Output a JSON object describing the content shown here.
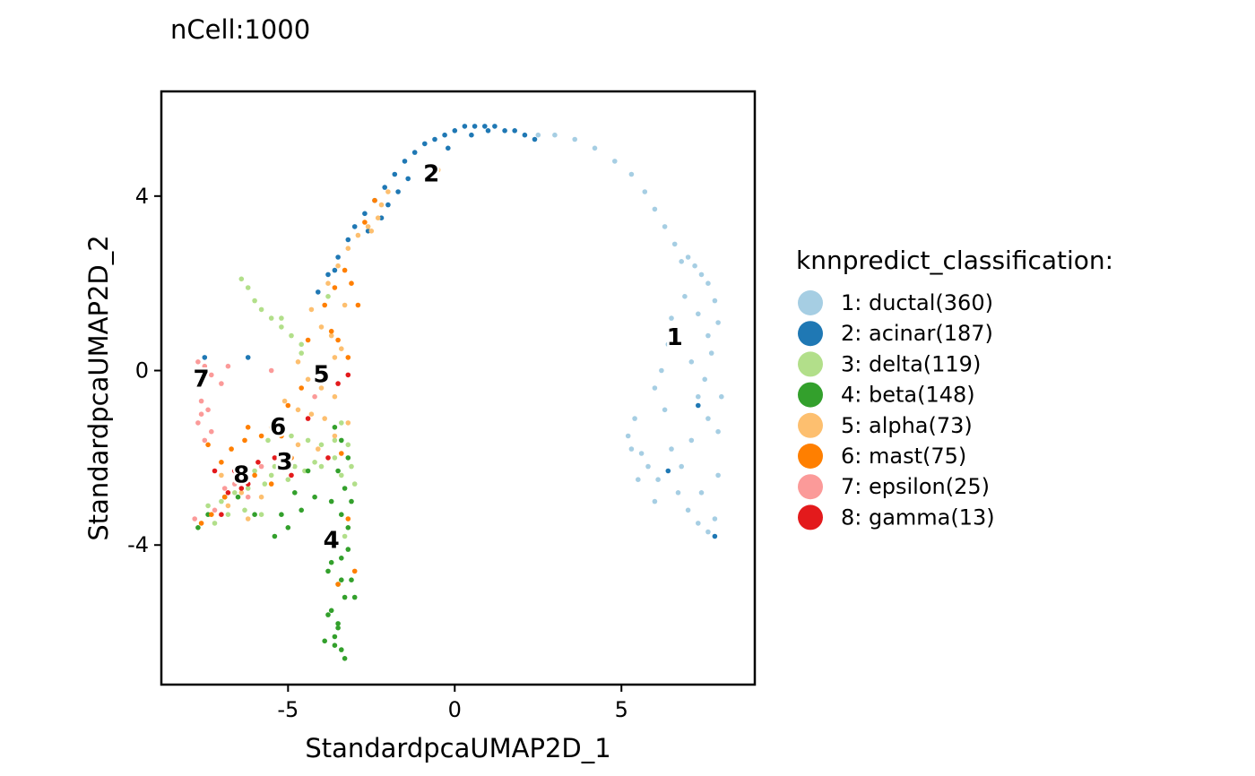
{
  "chart_data": {
    "type": "scatter",
    "title": "nCell:1000",
    "xlabel": "StandardpcaUMAP2D_1",
    "ylabel": "StandardpcaUMAP2D_2",
    "xlim": [
      -8.8,
      9.0
    ],
    "ylim": [
      -7.2,
      6.4
    ],
    "x_ticks": [
      -5,
      0,
      5
    ],
    "y_ticks": [
      -4,
      0,
      4
    ],
    "x_tick_labels": [
      "-5",
      "0",
      "5"
    ],
    "y_tick_labels": [
      "-4",
      "0",
      "4"
    ],
    "grid": false,
    "legend": {
      "title": "knnpredict_classification:",
      "position": "right"
    },
    "series": [
      {
        "id": "1",
        "name": "1: ductal(360)",
        "count": 360,
        "color": "#a6cee3",
        "label_pos": [
          6.6,
          0.75
        ],
        "x": [
          2.5,
          3.0,
          3.6,
          4.2,
          4.8,
          5.3,
          5.7,
          6.0,
          6.3,
          6.6,
          6.8,
          7.0,
          7.2,
          7.4,
          7.6,
          7.8,
          7.9,
          6.9,
          7.3,
          7.7,
          6.5,
          6.4,
          7.1,
          7.5,
          8.0,
          6.2,
          6.0,
          6.3,
          7.6,
          7.9,
          5.4,
          5.2,
          5.6,
          5.8,
          6.1,
          6.7,
          7.0,
          7.3,
          7.6,
          7.8,
          7.4,
          6.8,
          7.9,
          6.5,
          5.5,
          5.3,
          6.0,
          7.1,
          7.6,
          7.3
        ],
        "y": [
          5.4,
          5.4,
          5.3,
          5.1,
          4.8,
          4.5,
          4.1,
          3.7,
          3.3,
          2.9,
          2.5,
          2.6,
          2.4,
          2.2,
          2.0,
          1.6,
          1.1,
          1.7,
          1.3,
          0.4,
          1.2,
          0.6,
          0.2,
          -0.2,
          -0.6,
          0.0,
          -0.4,
          -0.9,
          -1.1,
          -1.4,
          -1.1,
          -1.5,
          -1.9,
          -2.2,
          -2.5,
          -2.8,
          -3.2,
          -3.5,
          -3.7,
          -3.4,
          -2.8,
          -2.2,
          -2.4,
          -1.8,
          -2.5,
          -1.8,
          -3.0,
          -1.6,
          0.8,
          -0.6
        ]
      },
      {
        "id": "2",
        "name": "2: acinar(187)",
        "count": 187,
        "color": "#1f78b4",
        "label_pos": [
          -0.7,
          4.5
        ],
        "x": [
          -4.1,
          -3.8,
          -3.5,
          -3.2,
          -3.0,
          -2.7,
          -2.4,
          -2.1,
          -1.8,
          -1.5,
          -1.2,
          -0.9,
          -0.6,
          -0.3,
          0.0,
          0.3,
          0.6,
          0.9,
          1.2,
          1.5,
          1.8,
          2.1,
          2.4,
          -2.6,
          -2.2,
          -1.7,
          -1.4,
          -2.0,
          -0.2,
          0.5,
          1.0,
          6.5,
          7.3,
          6.4,
          7.8,
          -7.5,
          -6.2,
          -3.6
        ],
        "y": [
          1.8,
          2.2,
          2.6,
          3.0,
          3.3,
          3.6,
          3.9,
          4.2,
          4.5,
          4.8,
          5.0,
          5.2,
          5.3,
          5.4,
          5.5,
          5.6,
          5.6,
          5.6,
          5.6,
          5.5,
          5.5,
          5.4,
          5.3,
          3.2,
          3.5,
          4.1,
          4.4,
          3.8,
          5.1,
          5.4,
          5.5,
          0.9,
          -0.8,
          -2.3,
          -3.8,
          0.3,
          0.3,
          2.3
        ]
      },
      {
        "id": "3",
        "name": "3: delta(119)",
        "count": 119,
        "color": "#b2df8a",
        "label_pos": [
          -5.1,
          -2.1
        ],
        "x": [
          -6.4,
          -6.2,
          -6.0,
          -5.8,
          -5.5,
          -5.2,
          -4.9,
          -4.6,
          -5.6,
          -4.9,
          -4.4,
          -4.0,
          -3.6,
          -3.2,
          -5.4,
          -4.8,
          -4.2,
          -3.6,
          -3.1,
          -6.0,
          -5.5,
          -5.0,
          -4.5,
          -4.0,
          -3.4,
          -7.4,
          -7.0,
          -6.6,
          -6.2,
          -5.7,
          -7.2,
          -6.8,
          -6.3,
          -5.8,
          -3.3,
          -3.0,
          -3.4,
          -5.2,
          -4.6,
          -3.8
        ],
        "y": [
          2.1,
          1.9,
          1.6,
          1.4,
          1.2,
          1.0,
          0.8,
          0.6,
          -1.6,
          -1.5,
          -1.6,
          -1.7,
          -1.6,
          -1.7,
          -2.2,
          -2.2,
          -2.1,
          -2.0,
          -2.2,
          -2.3,
          -2.4,
          -2.5,
          -2.3,
          -2.2,
          -2.4,
          -3.1,
          -3.0,
          -2.8,
          -2.7,
          -2.6,
          -3.5,
          -3.3,
          -3.2,
          -3.3,
          -3.8,
          -2.6,
          -1.2,
          1.2,
          0.4,
          1.7
        ]
      },
      {
        "id": "4",
        "name": "4: beta(148)",
        "count": 148,
        "color": "#33a02c",
        "label_pos": [
          -3.7,
          -3.9
        ],
        "x": [
          -3.6,
          -3.4,
          -3.2,
          -3.5,
          -3.3,
          -3.7,
          -3.4,
          -3.2,
          -3.6,
          -3.4,
          -3.8,
          -3.5,
          -3.3,
          -3.7,
          -3.5,
          -3.6,
          -3.4,
          -3.3,
          -3.8,
          -3.6,
          -3.5,
          -3.7,
          -3.4,
          -3.2,
          -4.2,
          -4.6,
          -5.0,
          -5.4,
          -5.2,
          -4.8,
          -4.4,
          -6.9,
          -7.4,
          -7.7,
          -6.0,
          -6.5,
          -3.1,
          -3.0,
          -3.9,
          -3.1
        ],
        "y": [
          -1.3,
          -1.6,
          -2.0,
          -2.3,
          -2.7,
          -3.0,
          -3.3,
          -3.6,
          -4.0,
          -4.3,
          -4.6,
          -4.9,
          -5.2,
          -5.5,
          -5.8,
          -6.1,
          -6.4,
          -6.6,
          -5.6,
          -6.3,
          -5.9,
          -4.4,
          -4.8,
          -4.1,
          -2.9,
          -3.2,
          -3.6,
          -3.8,
          -3.3,
          -2.8,
          -2.3,
          -2.9,
          -3.3,
          -3.6,
          -3.3,
          -2.9,
          -4.8,
          -5.2,
          -6.2,
          -3.0
        ]
      },
      {
        "id": "5",
        "name": "5: alpha(73)",
        "count": 73,
        "color": "#fdbf6f",
        "label_pos": [
          -4.0,
          -0.1
        ],
        "x": [
          -3.8,
          -3.5,
          -3.2,
          -2.9,
          -2.6,
          -2.3,
          -4.3,
          -4.0,
          -3.7,
          -3.4,
          -4.7,
          -4.4,
          -4.0,
          -3.6,
          -5.1,
          -4.7,
          -4.3,
          -3.9,
          -5.5,
          -5.2,
          -4.7,
          -4.1,
          -3.6,
          -3.2,
          -6.4,
          -6.8,
          -7.0,
          -6.2,
          -5.8,
          -3.3,
          -2.2,
          -2.0,
          -2.5,
          -3.6,
          -0.5
        ],
        "y": [
          2.0,
          2.4,
          2.8,
          3.1,
          3.3,
          3.5,
          1.4,
          1.0,
          0.8,
          0.5,
          0.2,
          -0.2,
          -0.4,
          -0.6,
          -0.7,
          -0.9,
          -1.0,
          -1.1,
          -1.3,
          -1.5,
          -1.7,
          -1.8,
          -1.5,
          -1.2,
          -2.8,
          -3.1,
          -2.4,
          -3.4,
          -2.9,
          1.5,
          3.8,
          4.1,
          3.2,
          0.3,
          4.6
        ]
      },
      {
        "id": "6",
        "name": "6: mast(75)",
        "count": 75,
        "color": "#ff7f00",
        "label_pos": [
          -5.3,
          -1.3
        ],
        "x": [
          -3.6,
          -3.3,
          -3.1,
          -2.9,
          -3.7,
          -3.5,
          -3.2,
          -4.6,
          -5.0,
          -5.4,
          -5.8,
          -6.3,
          -6.7,
          -7.0,
          -7.4,
          -6.0,
          -5.5,
          -6.5,
          -6.9,
          -7.3,
          -7.6,
          -3.4,
          -3.2,
          -3.0,
          -3.5,
          -5.2,
          -4.9,
          -2.4,
          -2.7,
          -3.9,
          -4.4,
          -6.2
        ],
        "y": [
          1.9,
          2.3,
          2.0,
          1.5,
          0.9,
          0.7,
          0.3,
          -0.4,
          -0.8,
          -1.2,
          -1.5,
          -1.6,
          -1.8,
          -2.1,
          -1.7,
          -2.4,
          -2.6,
          -2.5,
          -2.9,
          -3.3,
          -3.5,
          -1.9,
          -3.4,
          -4.6,
          -4.9,
          -1.5,
          -2.0,
          3.9,
          3.4,
          1.5,
          0.7,
          -1.3
        ]
      },
      {
        "id": "7",
        "name": "7: epsilon(25)",
        "count": 25,
        "color": "#fb9a99",
        "label_pos": [
          -7.6,
          -0.2
        ],
        "x": [
          -7.7,
          -7.5,
          -7.3,
          -7.0,
          -6.8,
          -7.6,
          -7.4,
          -7.7,
          -7.3,
          -7.5,
          -7.6,
          -6.6,
          -6.2,
          -7.8,
          -7.2,
          -6.9,
          -5.8,
          -5.5,
          -4.2
        ],
        "y": [
          0.2,
          0.1,
          -0.1,
          -0.3,
          0.1,
          -0.7,
          -0.9,
          -1.2,
          -1.4,
          -1.6,
          -1.0,
          -2.6,
          -2.9,
          -3.4,
          -3.2,
          -2.7,
          -2.2,
          0.0,
          -0.6
        ]
      },
      {
        "id": "8",
        "name": "8: gamma(13)",
        "count": 13,
        "color": "#e31a1c",
        "label_pos": [
          -6.4,
          -2.4
        ],
        "x": [
          -6.6,
          -6.2,
          -5.9,
          -6.8,
          -7.2,
          -4.9,
          -3.5,
          -3.2,
          -5.4,
          -7.0,
          -4.4,
          -6.4,
          -3.8
        ],
        "y": [
          -2.3,
          -2.6,
          -2.1,
          -2.8,
          -2.3,
          -2.4,
          -0.3,
          -0.1,
          -2.0,
          -3.3,
          -1.1,
          -2.7,
          -2.0
        ]
      }
    ]
  }
}
